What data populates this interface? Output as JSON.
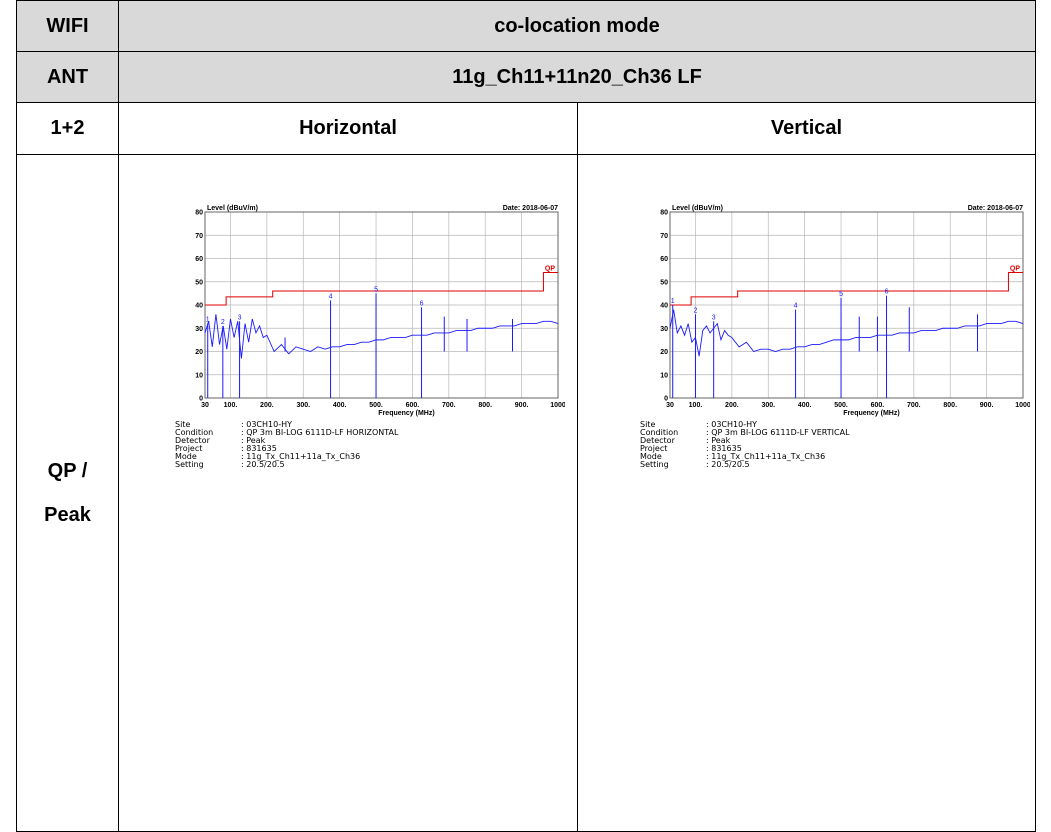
{
  "table": {
    "wifi_label": "WIFI",
    "wifi_value": "co-location mode",
    "ant_label": "ANT",
    "ant_value": "11g_Ch11+11n20_Ch36 LF",
    "config_label": "1+2",
    "col_horizontal": "Horizontal",
    "col_vertical": "Vertical",
    "row_label_line1": "QP /",
    "row_label_line2": "Peak"
  },
  "chart_data": [
    {
      "type": "line",
      "title": "Level (dBuV/m)",
      "date": "Date: 2018-06-07",
      "xlabel": "Frequency (MHz)",
      "ylabel": "Level (dBuV/m)",
      "xlim": [
        30,
        1000
      ],
      "ylim": [
        0,
        80
      ],
      "x_ticks": [
        "30",
        "100.",
        "200.",
        "300.",
        "400.",
        "500.",
        "600.",
        "700.",
        "800.",
        "900.",
        "1000"
      ],
      "x_tick_values": [
        30,
        100,
        200,
        300,
        400,
        500,
        600,
        700,
        800,
        900,
        1000
      ],
      "y_ticks": [
        "0",
        "10",
        "20",
        "30",
        "40",
        "50",
        "60",
        "70",
        "80"
      ],
      "grid": true,
      "limit_label": "QP",
      "limit_line": [
        [
          30,
          40
        ],
        [
          88,
          40
        ],
        [
          88,
          43.5
        ],
        [
          216,
          43.5
        ],
        [
          216,
          46
        ],
        [
          960,
          46
        ],
        [
          960,
          54
        ],
        [
          1000,
          54
        ]
      ],
      "spectrum_trace": [
        [
          30,
          28
        ],
        [
          40,
          33
        ],
        [
          50,
          22
        ],
        [
          60,
          36
        ],
        [
          70,
          23
        ],
        [
          80,
          31
        ],
        [
          90,
          21
        ],
        [
          100,
          34
        ],
        [
          110,
          26
        ],
        [
          120,
          33
        ],
        [
          130,
          17
        ],
        [
          140,
          32
        ],
        [
          150,
          24
        ],
        [
          160,
          34
        ],
        [
          170,
          28
        ],
        [
          180,
          31
        ],
        [
          190,
          26
        ],
        [
          200,
          27
        ],
        [
          220,
          20
        ],
        [
          240,
          23
        ],
        [
          260,
          19
        ],
        [
          280,
          22
        ],
        [
          300,
          21
        ],
        [
          320,
          20
        ],
        [
          340,
          22
        ],
        [
          360,
          21
        ],
        [
          380,
          22
        ],
        [
          400,
          22
        ],
        [
          420,
          23
        ],
        [
          440,
          23
        ],
        [
          460,
          24
        ],
        [
          480,
          24
        ],
        [
          500,
          25
        ],
        [
          520,
          25
        ],
        [
          540,
          26
        ],
        [
          560,
          26
        ],
        [
          580,
          26
        ],
        [
          600,
          27
        ],
        [
          620,
          27
        ],
        [
          640,
          27
        ],
        [
          660,
          28
        ],
        [
          680,
          28
        ],
        [
          700,
          28
        ],
        [
          720,
          29
        ],
        [
          740,
          29
        ],
        [
          760,
          29
        ],
        [
          780,
          30
        ],
        [
          800,
          30
        ],
        [
          820,
          30
        ],
        [
          840,
          31
        ],
        [
          860,
          31
        ],
        [
          880,
          31
        ],
        [
          900,
          32
        ],
        [
          920,
          32
        ],
        [
          940,
          32
        ],
        [
          960,
          33
        ],
        [
          980,
          33
        ],
        [
          1000,
          32
        ]
      ],
      "spike_markers": [
        [
          37.5,
          32,
          "1"
        ],
        [
          79,
          31,
          "2"
        ],
        [
          125,
          33,
          "3"
        ],
        [
          375,
          42,
          "4"
        ],
        [
          500,
          45,
          "5"
        ],
        [
          625,
          39,
          "6"
        ]
      ],
      "extra_spikes": [
        [
          250,
          26
        ],
        [
          687.5,
          35
        ],
        [
          750,
          34
        ],
        [
          875,
          34
        ]
      ],
      "site_info": [
        {
          "k": "Site",
          "v": ": 03CH10-HY"
        },
        {
          "k": "Condition",
          "v": ": QP 3m BI-LOG 6111D-LF HORIZONTAL"
        },
        {
          "k": "Detector",
          "v": ": Peak"
        },
        {
          "k": "Project",
          "v": ": 831635"
        },
        {
          "k": "Mode",
          "v": ": 11g_Tx_Ch11+11a_Tx_Ch36"
        },
        {
          "k": "Setting",
          "v": ": 20.5/20.5"
        }
      ]
    },
    {
      "type": "line",
      "title": "Level (dBuV/m)",
      "date": "Date: 2018-06-07",
      "xlabel": "Frequency (MHz)",
      "ylabel": "Level (dBuV/m)",
      "xlim": [
        30,
        1000
      ],
      "ylim": [
        0,
        80
      ],
      "x_ticks": [
        "30",
        "100.",
        "200.",
        "300.",
        "400.",
        "500.",
        "600.",
        "700.",
        "800.",
        "900.",
        "1000"
      ],
      "x_tick_values": [
        30,
        100,
        200,
        300,
        400,
        500,
        600,
        700,
        800,
        900,
        1000
      ],
      "y_ticks": [
        "0",
        "10",
        "20",
        "30",
        "40",
        "50",
        "60",
        "70",
        "80"
      ],
      "grid": true,
      "limit_label": "QP",
      "limit_line": [
        [
          30,
          40
        ],
        [
          88,
          40
        ],
        [
          88,
          43.5
        ],
        [
          216,
          43.5
        ],
        [
          216,
          46
        ],
        [
          960,
          46
        ],
        [
          960,
          54
        ],
        [
          1000,
          54
        ]
      ],
      "spectrum_trace": [
        [
          30,
          30
        ],
        [
          40,
          38
        ],
        [
          50,
          28
        ],
        [
          60,
          31
        ],
        [
          70,
          27
        ],
        [
          80,
          32
        ],
        [
          90,
          24
        ],
        [
          100,
          26
        ],
        [
          110,
          18
        ],
        [
          120,
          29
        ],
        [
          130,
          31
        ],
        [
          140,
          28
        ],
        [
          150,
          30
        ],
        [
          160,
          32
        ],
        [
          170,
          25
        ],
        [
          180,
          29
        ],
        [
          190,
          27
        ],
        [
          200,
          26
        ],
        [
          220,
          22
        ],
        [
          240,
          24
        ],
        [
          260,
          20
        ],
        [
          280,
          21
        ],
        [
          300,
          21
        ],
        [
          320,
          20
        ],
        [
          340,
          21
        ],
        [
          360,
          21
        ],
        [
          380,
          22
        ],
        [
          400,
          22
        ],
        [
          420,
          23
        ],
        [
          440,
          23
        ],
        [
          460,
          24
        ],
        [
          480,
          25
        ],
        [
          500,
          25
        ],
        [
          520,
          25
        ],
        [
          540,
          26
        ],
        [
          560,
          26
        ],
        [
          580,
          26
        ],
        [
          600,
          27
        ],
        [
          620,
          27
        ],
        [
          640,
          27
        ],
        [
          660,
          28
        ],
        [
          680,
          28
        ],
        [
          700,
          28
        ],
        [
          720,
          29
        ],
        [
          740,
          29
        ],
        [
          760,
          29
        ],
        [
          780,
          30
        ],
        [
          800,
          30
        ],
        [
          820,
          30
        ],
        [
          840,
          31
        ],
        [
          860,
          31
        ],
        [
          880,
          31
        ],
        [
          900,
          32
        ],
        [
          920,
          32
        ],
        [
          940,
          32
        ],
        [
          960,
          33
        ],
        [
          980,
          33
        ],
        [
          1000,
          32
        ]
      ],
      "spike_markers": [
        [
          37.5,
          40,
          "1"
        ],
        [
          100,
          36,
          "2"
        ],
        [
          150,
          33,
          "3"
        ],
        [
          375,
          38,
          "4"
        ],
        [
          500,
          43,
          "5"
        ],
        [
          625,
          44,
          "6"
        ]
      ],
      "extra_spikes": [
        [
          550,
          35
        ],
        [
          600,
          35
        ],
        [
          687.5,
          39
        ],
        [
          875,
          36
        ]
      ],
      "site_info": [
        {
          "k": "Site",
          "v": ": 03CH10-HY"
        },
        {
          "k": "Condition",
          "v": ": QP 3m BI-LOG 6111D-LF VERTICAL"
        },
        {
          "k": "Detector",
          "v": ": Peak"
        },
        {
          "k": "Project",
          "v": ": 831635"
        },
        {
          "k": "Mode",
          "v": ": 11g_Tx_Ch11+11a_Tx_Ch36"
        },
        {
          "k": "Setting",
          "v": ": 20.5/20.5"
        }
      ]
    }
  ]
}
